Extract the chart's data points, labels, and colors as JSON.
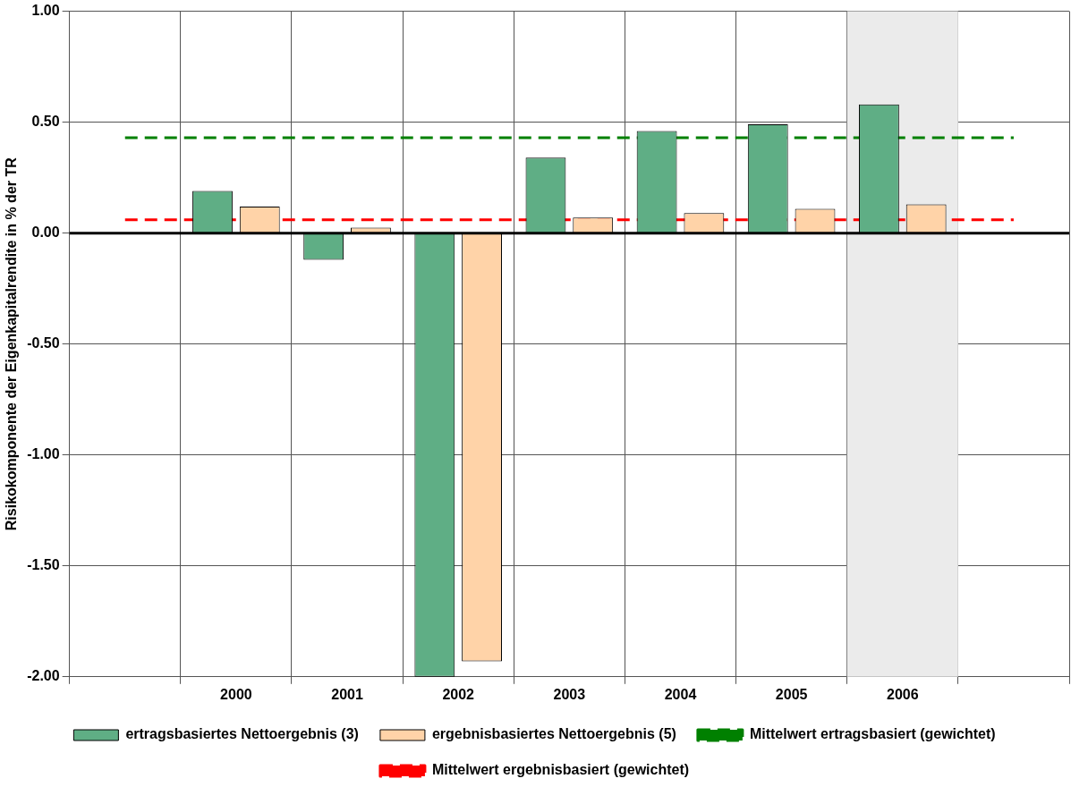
{
  "chart_data": {
    "type": "bar",
    "ylabel": "Risikokomponente der Eigenkapitalrendite in % der TR",
    "categories": [
      null,
      "2000",
      "2001",
      "2002",
      "2003",
      "2004",
      "2005",
      "2006",
      null
    ],
    "series": [
      {
        "name": "ertragsbasiertes Nettoergebnis (3)",
        "color": "#5fae85",
        "values": [
          null,
          0.19,
          -0.12,
          -2.0,
          0.34,
          0.46,
          0.49,
          0.58,
          null
        ]
      },
      {
        "name": "ergebnisbasiertes Nettoergebnis (5)",
        "color": "#ffd3a8",
        "values": [
          null,
          0.12,
          0.025,
          -1.93,
          0.07,
          0.09,
          0.11,
          0.13,
          null
        ]
      },
      {
        "name": "Mittelwert ertragsbasiert (gewichtet)",
        "type": "line",
        "color": "#008000",
        "line_style": "dashed",
        "values": [
          0.43,
          0.43,
          0.43,
          0.43,
          0.43,
          0.43,
          0.43,
          0.43,
          0.43
        ]
      },
      {
        "name": "Mittelwert ergebnisbasiert (gewichtet)",
        "type": "line",
        "color": "#ff0000",
        "line_style": "dashed",
        "values": [
          0.06,
          0.06,
          0.06,
          0.06,
          0.06,
          0.06,
          0.06,
          0.06,
          0.06
        ]
      }
    ],
    "ylim": [
      -2,
      1
    ],
    "yticks": [
      {
        "value": -2,
        "label": "-2.00"
      },
      {
        "value": -1.5,
        "label": "-1.50"
      },
      {
        "value": -1,
        "label": "-1.00"
      },
      {
        "value": -0.5,
        "label": "-0.50"
      },
      {
        "value": 0,
        "label": "0.00"
      },
      {
        "value": 0.5,
        "label": "0.50"
      },
      {
        "value": 1,
        "label": "1.00"
      }
    ],
    "bands": [
      {
        "axis": "x",
        "from": "2006",
        "to": "2006",
        "color": "#ebebeb"
      }
    ],
    "grid": true,
    "legend": "bottom",
    "marker": "none"
  }
}
